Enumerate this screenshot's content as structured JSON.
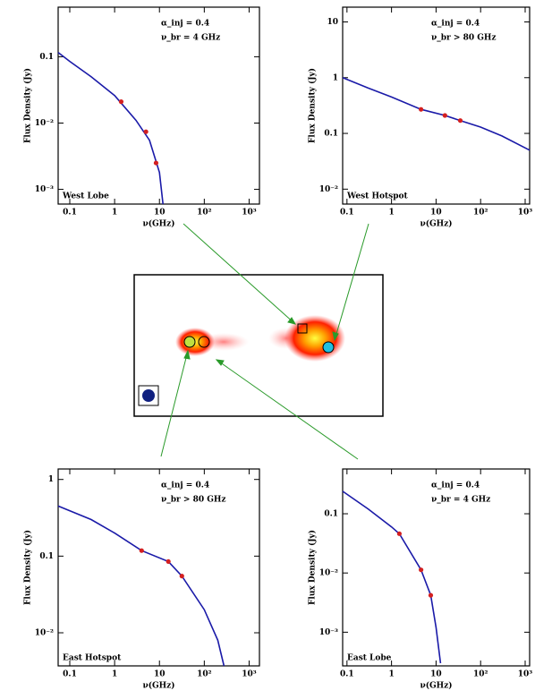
{
  "chart_data": [
    {
      "type": "line",
      "xlog": true,
      "ylog": true,
      "xlabel": "ν(GHz)",
      "ylabel": "Flux Density (Jy)",
      "region": "West Lobe",
      "annotations": [
        "α_inj = 0.4",
        "ν_br = 4 GHz"
      ],
      "xlim": [
        0.055,
        1700
      ],
      "xticks": [
        0.1,
        1,
        10,
        {
          "value": 100,
          "label": "10²"
        },
        {
          "value": 1000,
          "label": "10³"
        }
      ],
      "ylim": [
        0.0006,
        0.56
      ],
      "yticks": [
        0.1,
        {
          "value": 0.01,
          "label": "10⁻²"
        },
        {
          "value": 0.001,
          "label": "10⁻³"
        }
      ],
      "series": [
        {
          "style": "line",
          "color": "#1a1aa8",
          "x": [
            0.055,
            0.1,
            0.3,
            1,
            3,
            6,
            10,
            12
          ],
          "values": [
            0.116,
            0.085,
            0.05,
            0.026,
            0.011,
            0.0055,
            0.0018,
            0.0006
          ]
        },
        {
          "style": "markers",
          "color": "#d42020",
          "x": [
            1.4,
            5,
            8.4
          ],
          "values": [
            0.021,
            0.0074,
            0.0025
          ]
        }
      ]
    },
    {
      "type": "line",
      "xlog": true,
      "ylog": true,
      "xlabel": "ν(GHz)",
      "ylabel": "Flux Density (Jy)",
      "region": "West Hotspot",
      "annotations": [
        "α_inj = 0.4",
        "ν_br > 80 GHz"
      ],
      "xlim": [
        0.08,
        1260
      ],
      "xticks": [
        0.1,
        1,
        10,
        {
          "value": 100,
          "label": "10²"
        },
        {
          "value": 1000,
          "label": "10³"
        }
      ],
      "ylim": [
        0.0054,
        18.4
      ],
      "yticks": [
        10,
        1,
        0.1,
        {
          "value": 0.01,
          "label": "10⁻²"
        }
      ],
      "series": [
        {
          "style": "line",
          "color": "#1a1aa8",
          "x": [
            0.08,
            0.3,
            1,
            4.6,
            15.8,
            35,
            100,
            300,
            1260
          ],
          "values": [
            1.0,
            0.65,
            0.45,
            0.27,
            0.21,
            0.17,
            0.13,
            0.09,
            0.05
          ]
        },
        {
          "style": "markers",
          "color": "#d42020",
          "x": [
            4.6,
            15.8,
            35
          ],
          "values": [
            0.27,
            0.21,
            0.17
          ]
        }
      ]
    },
    {
      "type": "line",
      "xlog": true,
      "ylog": true,
      "xlabel": "ν(GHz)",
      "ylabel": "Flux Density (Jy)",
      "region": "East Hotspot",
      "annotations": [
        "α_inj = 0.4",
        "ν_br > 80 GHz"
      ],
      "xlim": [
        0.055,
        1700
      ],
      "xticks": [
        0.1,
        1,
        10,
        {
          "value": 100,
          "label": "10²"
        },
        {
          "value": 1000,
          "label": "10³"
        }
      ],
      "ylim": [
        0.0037,
        1.37
      ],
      "yticks": [
        1,
        0.1,
        {
          "value": 0.01,
          "label": "10⁻²"
        }
      ],
      "series": [
        {
          "style": "line",
          "color": "#1a1aa8",
          "x": [
            0.055,
            0.3,
            1,
            4,
            15.8,
            31.6,
            100,
            200,
            275
          ],
          "values": [
            0.45,
            0.3,
            0.2,
            0.118,
            0.085,
            0.055,
            0.02,
            0.008,
            0.0037
          ]
        },
        {
          "style": "markers",
          "color": "#d42020",
          "x": [
            4,
            15.8,
            31.6
          ],
          "values": [
            0.118,
            0.085,
            0.055
          ]
        }
      ]
    },
    {
      "type": "line",
      "xlog": true,
      "ylog": true,
      "xlabel": "ν(GHz)",
      "ylabel": "Flux Density (Jy)",
      "region": "East Lobe",
      "annotations": [
        "α_inj = 0.4",
        "ν_br = 4 GHz"
      ],
      "xlim": [
        0.08,
        1260
      ],
      "xticks": [
        0.1,
        1,
        10,
        {
          "value": 100,
          "label": "10²"
        },
        {
          "value": 1000,
          "label": "10³"
        }
      ],
      "ylim": [
        0.00027,
        0.57
      ],
      "yticks": [
        0.1,
        {
          "value": 0.01,
          "label": "10⁻²"
        },
        {
          "value": 0.001,
          "label": "10⁻³"
        }
      ],
      "series": [
        {
          "style": "line",
          "color": "#1a1aa8",
          "x": [
            0.08,
            0.3,
            1,
            1.5,
            4.6,
            7.6,
            10,
            12.6
          ],
          "values": [
            0.24,
            0.12,
            0.06,
            0.046,
            0.0113,
            0.0042,
            0.0012,
            0.0003
          ]
        },
        {
          "style": "markers",
          "color": "#d42020",
          "x": [
            1.5,
            4.6,
            7.6
          ],
          "values": [
            0.046,
            0.0113,
            0.0042
          ]
        }
      ]
    }
  ]
}
